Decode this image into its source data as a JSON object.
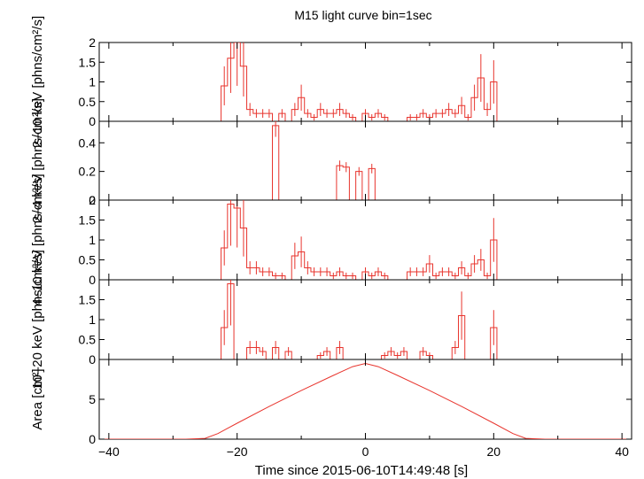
{
  "title": "M15 light curve bin=1sec",
  "xlabel": "Time since 2015-06-10T14:49:48 [s]",
  "colors": {
    "data": "#e8352e",
    "axes": "#000000"
  },
  "chart_data": [
    {
      "type": "line",
      "panel": "2-10 keV",
      "ylabel": "2–10 keV [phns/cm²/s]",
      "xlim": [
        -41.5,
        41.5
      ],
      "ylim": [
        0,
        2.0
      ],
      "yticks": [
        0,
        0.5,
        1,
        1.5,
        2
      ],
      "x": [
        -22,
        -21,
        -20,
        -19,
        -18,
        -17,
        -16,
        -15,
        -14,
        -13,
        -12,
        -11,
        -10,
        -9,
        -8,
        -7,
        -6,
        -5,
        -4,
        -3,
        -2,
        -1,
        0,
        1,
        2,
        3,
        4,
        5,
        6,
        7,
        8,
        9,
        10,
        11,
        12,
        13,
        14,
        15,
        16,
        17,
        18,
        19,
        20,
        21
      ],
      "y": [
        0.9,
        1.6,
        2.0,
        1.4,
        0.3,
        0.2,
        0.2,
        0.2,
        0,
        0.2,
        0,
        0.3,
        0.6,
        0.2,
        0.1,
        0.3,
        0.2,
        0.2,
        0.3,
        0.2,
        0.1,
        0,
        0.2,
        0.1,
        0.2,
        0.1,
        0,
        0,
        0,
        0.1,
        0.1,
        0.2,
        0.1,
        0.2,
        0.2,
        0.3,
        0.2,
        0.4,
        0.1,
        0.6,
        1.1,
        0.3,
        1.0,
        0
      ]
    },
    {
      "type": "line",
      "panel": "2-4 keV",
      "ylabel": "2–4 keV [phns/cm²/s]",
      "xlim": [
        -41.5,
        41.5
      ],
      "ylim": [
        0,
        0.55
      ],
      "yticks": [
        0,
        0.2,
        0.4
      ],
      "x": [
        -22,
        -21,
        -20,
        -19,
        -18,
        -17,
        -16,
        -15,
        -14,
        -13,
        -12,
        -11,
        -10,
        -9,
        -8,
        -7,
        -6,
        -5,
        -4,
        -3,
        -2,
        -1,
        0,
        1,
        2,
        3,
        4,
        5,
        6,
        7,
        8,
        9,
        10,
        11,
        12,
        13,
        14,
        15,
        16,
        17,
        18,
        19,
        20,
        21
      ],
      "y": [
        0,
        0,
        0,
        0,
        0,
        0,
        0,
        0,
        0.52,
        0,
        0,
        0,
        0,
        0,
        0,
        0,
        0,
        0,
        0.24,
        0.23,
        0,
        0.2,
        0,
        0.22,
        0,
        0,
        0,
        0,
        0,
        0,
        0,
        0,
        0,
        0,
        0,
        0,
        0,
        0,
        0,
        0,
        0,
        0,
        0,
        0
      ]
    },
    {
      "type": "line",
      "panel": "4-10 keV",
      "ylabel": "4–10 keV [phns/cm²/s]",
      "xlim": [
        -41.5,
        41.5
      ],
      "ylim": [
        0,
        2.0
      ],
      "yticks": [
        0,
        0.5,
        1,
        1.5,
        2
      ],
      "x": [
        -22,
        -21,
        -20,
        -19,
        -18,
        -17,
        -16,
        -15,
        -14,
        -13,
        -12,
        -11,
        -10,
        -9,
        -8,
        -7,
        -6,
        -5,
        -4,
        -3,
        -2,
        -1,
        0,
        1,
        2,
        3,
        4,
        5,
        6,
        7,
        8,
        9,
        10,
        11,
        12,
        13,
        14,
        15,
        16,
        17,
        18,
        19,
        20,
        21
      ],
      "y": [
        0.8,
        1.9,
        1.8,
        1.3,
        0.3,
        0.3,
        0.2,
        0.2,
        0.1,
        0.1,
        0,
        0.6,
        0.7,
        0.3,
        0.2,
        0.2,
        0.2,
        0.1,
        0.2,
        0.1,
        0.1,
        0,
        0.2,
        0.1,
        0.2,
        0.1,
        0,
        0,
        0,
        0.2,
        0.2,
        0.2,
        0.4,
        0.1,
        0.2,
        0.2,
        0.1,
        0.3,
        0.1,
        0.4,
        0.5,
        0.1,
        1.0,
        0
      ]
    },
    {
      "type": "line",
      "panel": "10-20 keV",
      "ylabel": "10–20 keV [phns/cm²/s]",
      "xlim": [
        -41.5,
        41.5
      ],
      "ylim": [
        0,
        2.0
      ],
      "yticks": [
        0,
        0.5,
        1,
        1.5
      ],
      "x": [
        -22,
        -21,
        -20,
        -19,
        -18,
        -17,
        -16,
        -15,
        -14,
        -13,
        -12,
        -11,
        -10,
        -9,
        -8,
        -7,
        -6,
        -5,
        -4,
        -3,
        -2,
        -1,
        0,
        1,
        2,
        3,
        4,
        5,
        6,
        7,
        8,
        9,
        10,
        11,
        12,
        13,
        14,
        15,
        16,
        17,
        18,
        19,
        20,
        21
      ],
      "y": [
        0.8,
        1.9,
        0,
        0,
        0.3,
        0.3,
        0.2,
        0,
        0.3,
        0,
        0.2,
        0,
        0,
        0,
        0,
        0.1,
        0.2,
        0,
        0.3,
        0,
        0,
        0,
        0,
        0,
        0,
        0.1,
        0.2,
        0.1,
        0.2,
        0,
        0,
        0.2,
        0.1,
        0,
        0,
        0,
        0.3,
        1.1,
        0,
        0,
        0,
        0,
        0.8,
        0
      ]
    },
    {
      "type": "line",
      "panel": "Area",
      "ylabel": "Area [cm²]",
      "xlim": [
        -41.5,
        41.5
      ],
      "ylim": [
        0,
        10
      ],
      "yticks": [
        0,
        5
      ],
      "xticks": [
        -40,
        -20,
        0,
        20,
        40
      ],
      "x": [
        -41.5,
        -28,
        -25,
        -23,
        -20,
        -15,
        -10,
        -5,
        -2,
        0,
        2,
        5,
        10,
        15,
        20,
        23,
        25,
        28,
        41.5
      ],
      "y": [
        0,
        0,
        0.1,
        0.7,
        2.0,
        4.1,
        6.1,
        8.0,
        9.1,
        9.5,
        9.1,
        8.0,
        6.1,
        4.1,
        2.0,
        0.7,
        0.1,
        0,
        0
      ]
    }
  ]
}
